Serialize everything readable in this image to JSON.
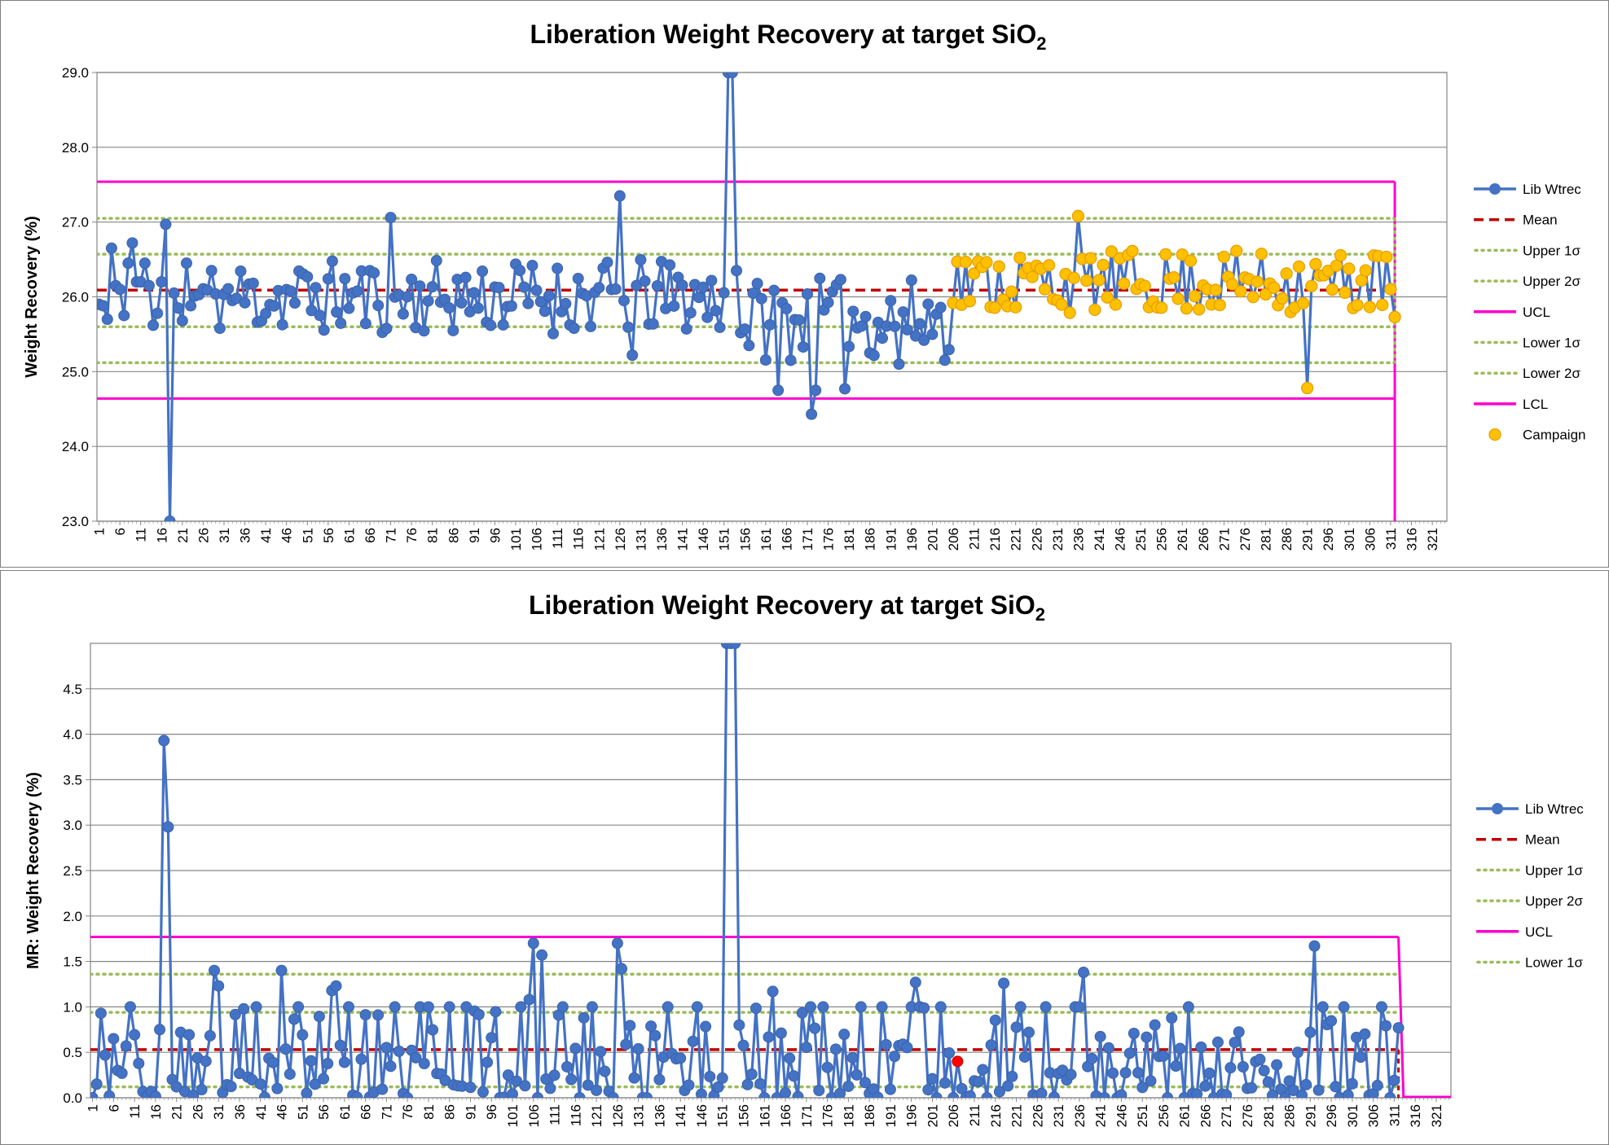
{
  "colors": {
    "series": "#4472c4",
    "mean": "#c00000",
    "sigma": "#9bbb59",
    "limit": "#ff00cc",
    "campaign_fill": "#ffc000",
    "campaign_stroke": "#e8a000",
    "flag": "#ff0000",
    "grid": "#868686",
    "axis": "#868686"
  },
  "chart_data": [
    {
      "type": "line",
      "title": "Liberation Weight Recovery at target SiO",
      "title_subscript": "2",
      "xlabel": "",
      "ylabel": "Weight Recovery (%)",
      "ylim": [
        23.0,
        29.0
      ],
      "ytick_values": [
        23,
        24,
        25,
        26,
        27,
        28,
        29
      ],
      "ytick_labels": [
        "23.0",
        "24.0",
        "25.0",
        "26.0",
        "27.0",
        "28.0",
        "29.0"
      ],
      "x_count": 324,
      "xtick_labels": [
        "1",
        "6",
        "11",
        "16",
        "21",
        "26",
        "31",
        "36",
        "41",
        "46",
        "51",
        "56",
        "61",
        "66",
        "71",
        "76",
        "81",
        "86",
        "91",
        "96",
        "101",
        "106",
        "111",
        "116",
        "121",
        "126",
        "131",
        "136",
        "141",
        "146",
        "151",
        "156",
        "161",
        "166",
        "171",
        "176",
        "181",
        "186",
        "191",
        "196",
        "201",
        "206",
        "211",
        "216",
        "221",
        "226",
        "231",
        "236",
        "241",
        "246",
        "251",
        "256",
        "261",
        "266",
        "271",
        "276",
        "281",
        "286",
        "291",
        "296",
        "301",
        "306",
        "311",
        "316",
        "321"
      ],
      "n_points": 312,
      "data_generation": "per-point values estimated from the image; regenerated deterministically with seed 11",
      "anchors": [
        [
          1,
          25.9
        ],
        [
          2,
          25.88
        ],
        [
          3,
          25.7
        ],
        [
          4,
          26.65
        ],
        [
          5,
          26.15
        ],
        [
          6,
          26.1
        ],
        [
          7,
          25.75
        ],
        [
          8,
          26.45
        ],
        [
          9,
          26.72
        ],
        [
          10,
          26.2
        ],
        [
          11,
          26.2
        ],
        [
          12,
          26.45
        ],
        [
          13,
          26.15
        ],
        [
          14,
          25.62
        ],
        [
          15,
          25.78
        ],
        [
          16,
          26.2
        ],
        [
          17,
          26.97
        ],
        [
          18,
          23.0
        ],
        [
          19,
          26.05
        ],
        [
          20,
          25.85
        ],
        [
          21,
          25.68
        ],
        [
          22,
          26.45
        ],
        [
          23,
          25.88
        ],
        [
          71,
          27.06
        ],
        [
          126,
          27.35
        ],
        [
          127,
          25.95
        ],
        [
          129,
          25.22
        ],
        [
          152,
          29.0
        ],
        [
          153,
          29.0
        ],
        [
          154,
          26.35
        ],
        [
          155,
          25.52
        ],
        [
          164,
          24.75
        ],
        [
          172,
          24.43
        ],
        [
          173,
          24.75
        ],
        [
          180,
          24.77
        ],
        [
          186,
          25.25
        ],
        [
          193,
          25.1
        ],
        [
          236,
          27.08
        ],
        [
          291,
          24.78
        ],
        [
          312,
          25.73
        ]
      ],
      "smooth_ranges": [
        [
          24,
          151,
          26.0,
          0.5
        ],
        [
          156,
          205,
          25.7,
          0.55
        ],
        [
          206,
          311,
          26.2,
          0.42
        ]
      ],
      "campaign_start": 206,
      "lines": {
        "mean": 26.09,
        "upper_1sigma": 26.57,
        "upper_2sigma": 27.05,
        "ucl": 27.54,
        "lower_1sigma": 25.6,
        "lower_2sigma": 25.12,
        "lcl": 24.64,
        "limit_end_index": 312
      },
      "legend": [
        {
          "label": "Lib Wtrec",
          "kind": "marker-line"
        },
        {
          "label": "Mean",
          "kind": "dash"
        },
        {
          "label": "Upper 1σ",
          "kind": "dot"
        },
        {
          "label": "Upper 2σ",
          "kind": "dot"
        },
        {
          "label": "UCL",
          "kind": "solid"
        },
        {
          "label": "Lower 1σ",
          "kind": "dot"
        },
        {
          "label": "Lower 2σ",
          "kind": "dot"
        },
        {
          "label": "LCL",
          "kind": "solid"
        },
        {
          "label": "Campaign",
          "kind": "campaign"
        }
      ],
      "legend_position": "right"
    },
    {
      "type": "line",
      "title": "Liberation Weight Recovery at target SiO",
      "title_subscript": "2",
      "xlabel": "",
      "ylabel": "MR: Weight Recovery (%)",
      "ylim": [
        0.0,
        5.0
      ],
      "ytick_values": [
        0,
        0.5,
        1,
        1.5,
        2,
        2.5,
        3,
        3.5,
        4,
        4.5
      ],
      "ytick_labels": [
        "0.0",
        "0.5",
        "1.0",
        "1.5",
        "2.0",
        "2.5",
        "3.0",
        "3.5",
        "4.0",
        "4.5"
      ],
      "x_count": 324,
      "xtick_labels": [
        "1",
        "6",
        "11",
        "16",
        "21",
        "26",
        "31",
        "36",
        "41",
        "46",
        "51",
        "56",
        "61",
        "66",
        "71",
        "76",
        "81",
        "86",
        "91",
        "96",
        "101",
        "106",
        "111",
        "116",
        "121",
        "126",
        "131",
        "136",
        "141",
        "146",
        "151",
        "156",
        "161",
        "166",
        "171",
        "176",
        "181",
        "186",
        "191",
        "196",
        "201",
        "206",
        "211",
        "216",
        "221",
        "226",
        "231",
        "236",
        "241",
        "246",
        "251",
        "256",
        "261",
        "266",
        "271",
        "276",
        "281",
        "286",
        "291",
        "296",
        "301",
        "306",
        "311",
        "316",
        "321"
      ],
      "n_points": 312,
      "data_generation": "per-point values estimated from the image; regenerated deterministically with seed 29",
      "anchors": [
        [
          1,
          0.0
        ],
        [
          2,
          0.15
        ],
        [
          3,
          0.93
        ],
        [
          4,
          0.47
        ],
        [
          5,
          0.02
        ],
        [
          6,
          0.65
        ],
        [
          7,
          0.3
        ],
        [
          8,
          0.27
        ],
        [
          17,
          0.75
        ],
        [
          18,
          3.93
        ],
        [
          19,
          2.98
        ],
        [
          20,
          0.2
        ],
        [
          21,
          0.12
        ],
        [
          22,
          0.72
        ],
        [
          30,
          1.4
        ],
        [
          31,
          1.23
        ],
        [
          46,
          1.4
        ],
        [
          58,
          1.18
        ],
        [
          59,
          1.23
        ],
        [
          105,
          1.08
        ],
        [
          106,
          1.7
        ],
        [
          108,
          1.57
        ],
        [
          126,
          1.7
        ],
        [
          127,
          1.42
        ],
        [
          152,
          5.0
        ],
        [
          153,
          5.0
        ],
        [
          154,
          5.0
        ],
        [
          155,
          0.8
        ],
        [
          163,
          1.17
        ],
        [
          197,
          1.27
        ],
        [
          207,
          0.4
        ],
        [
          208,
          0.1
        ],
        [
          209,
          0.0
        ],
        [
          218,
          1.26
        ],
        [
          237,
          1.38
        ],
        [
          291,
          0.72
        ],
        [
          292,
          1.67
        ],
        [
          312,
          0.77
        ]
      ],
      "base_level": 0.52,
      "flagged_point": [
        207,
        0.4
      ],
      "lines": {
        "mean": 0.53,
        "upper_1sigma": 0.94,
        "upper_2sigma": 1.36,
        "ucl": 1.77,
        "lower_1sigma": 0.12,
        "limit_end_index": 312
      },
      "legend": [
        {
          "label": "Lib Wtrec",
          "kind": "marker-line"
        },
        {
          "label": "Mean",
          "kind": "dash"
        },
        {
          "label": "Upper 1σ",
          "kind": "dot"
        },
        {
          "label": "Upper 2σ",
          "kind": "dot"
        },
        {
          "label": "UCL",
          "kind": "solid"
        },
        {
          "label": "Lower 1σ",
          "kind": "dot"
        }
      ],
      "legend_position": "right"
    }
  ]
}
